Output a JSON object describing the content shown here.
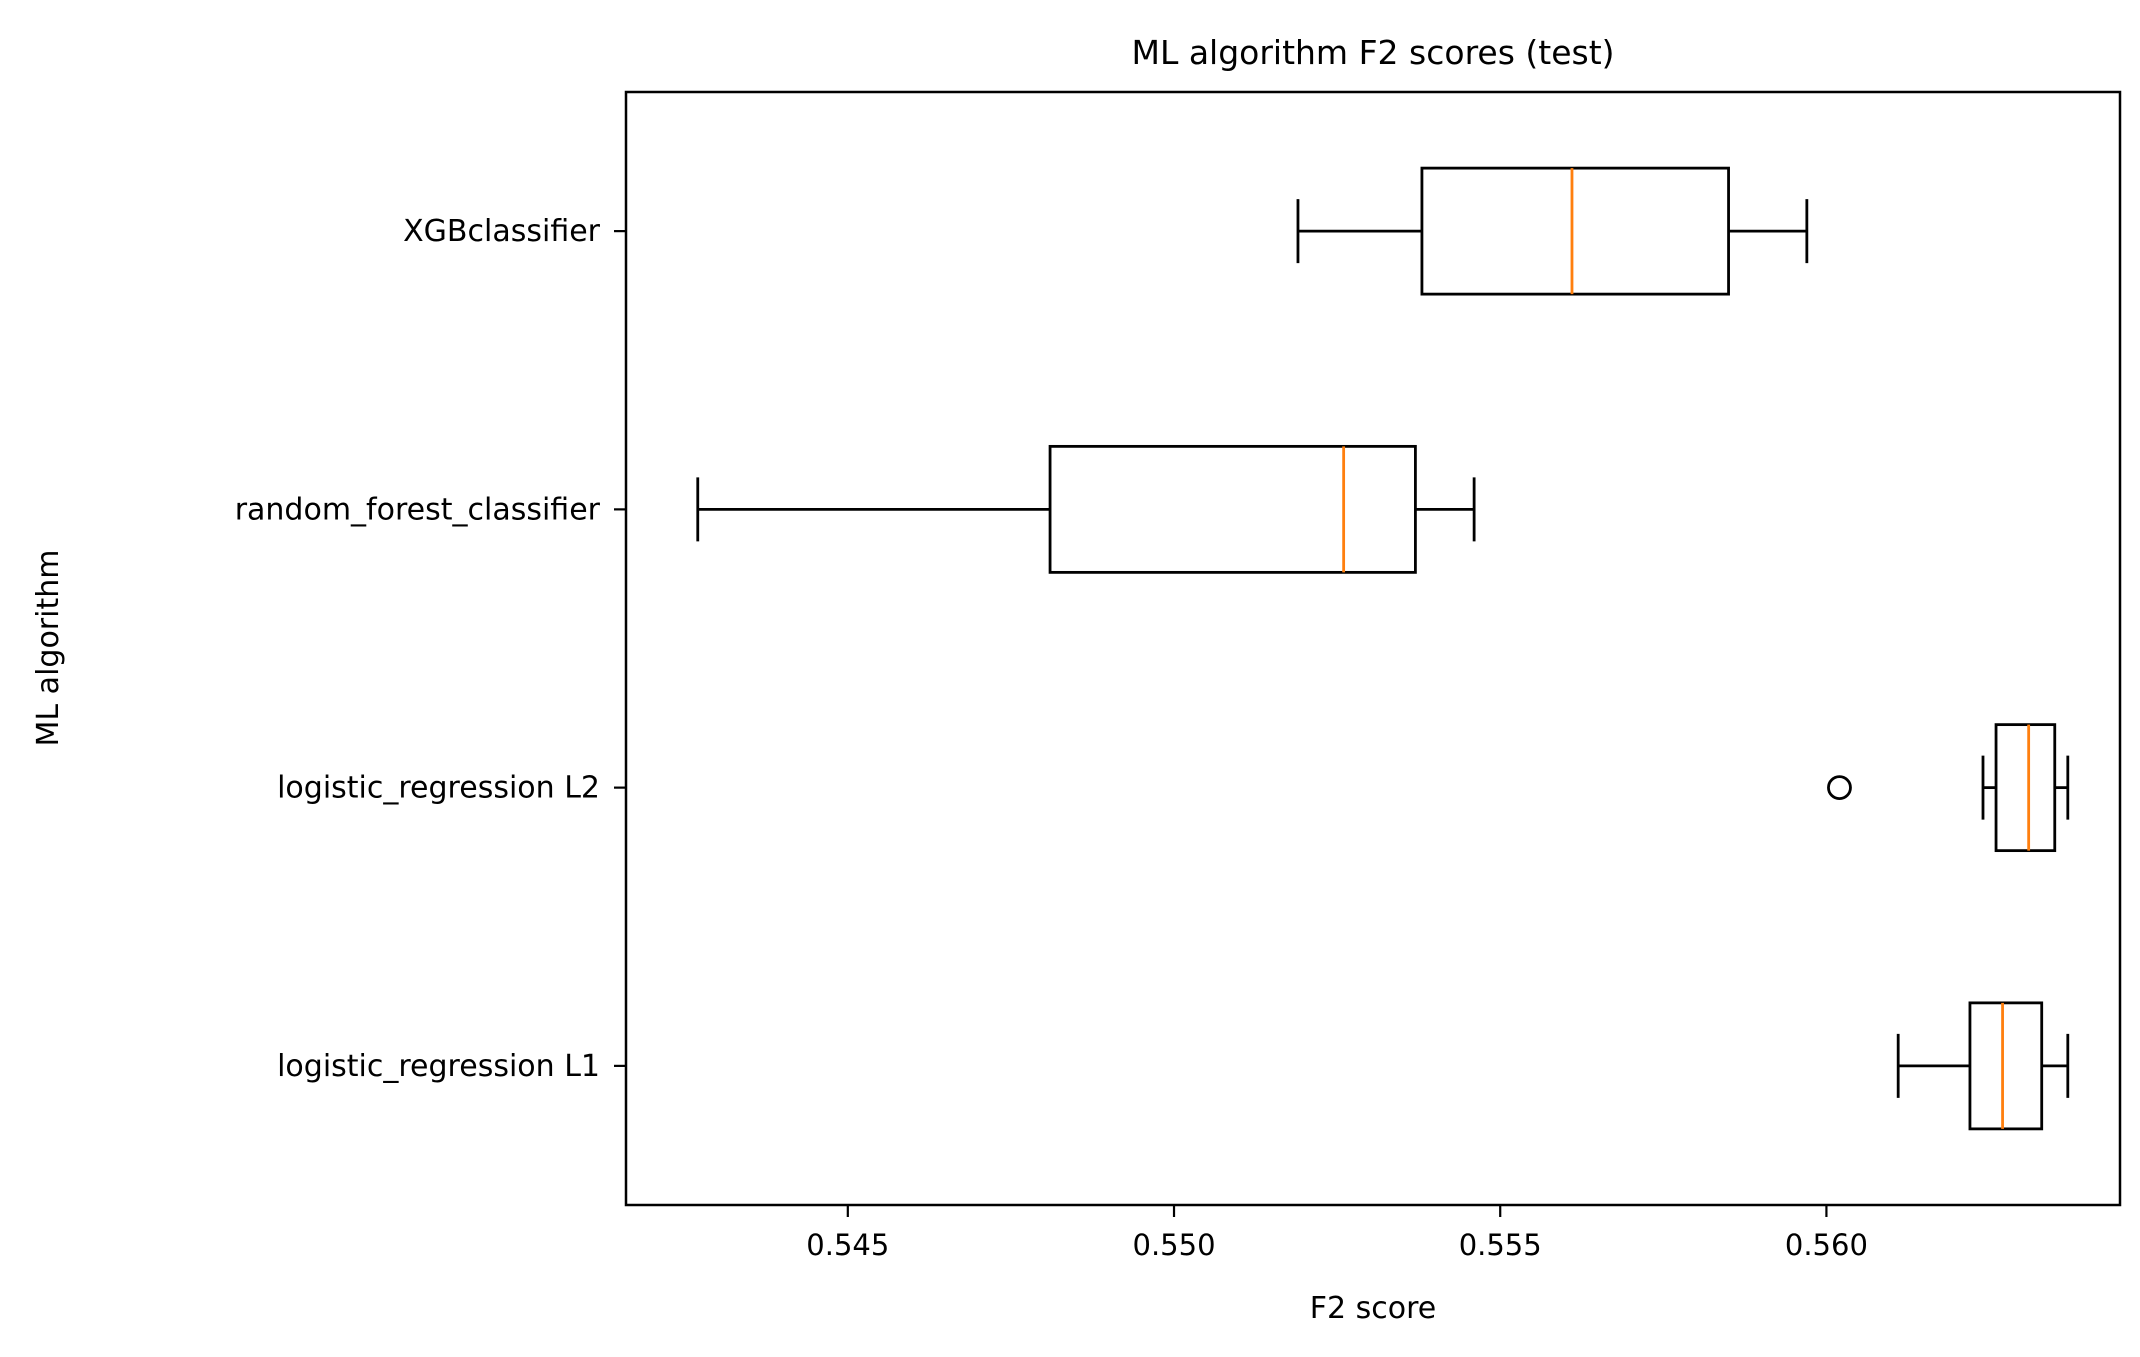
{
  "chart_data": {
    "type": "boxplot",
    "orientation": "horizontal",
    "title": "ML algorithm F2 scores (test)",
    "xlabel": "F2 score",
    "ylabel": "ML algorithm",
    "xlim": [
      0.5416,
      0.5645
    ],
    "xticks": [
      0.545,
      0.55,
      0.555,
      0.56
    ],
    "xtick_labels": [
      "0.545",
      "0.550",
      "0.555",
      "0.560"
    ],
    "grid": false,
    "categories": [
      "logistic_regression L1",
      "logistic_regression L2",
      "random_forest_classifier",
      "XGBclassifier"
    ],
    "boxes": [
      {
        "label": "logistic_regression L1",
        "whisker_low": 0.5611,
        "q1": 0.5622,
        "median": 0.5627,
        "q3": 0.5633,
        "whisker_high": 0.5637,
        "outliers": []
      },
      {
        "label": "logistic_regression L2",
        "whisker_low": 0.5624,
        "q1": 0.5626,
        "median": 0.5631,
        "q3": 0.5635,
        "whisker_high": 0.5637,
        "outliers": [
          0.5602
        ]
      },
      {
        "label": "random_forest_classifier",
        "whisker_low": 0.5427,
        "q1": 0.5481,
        "median": 0.5526,
        "q3": 0.5537,
        "whisker_high": 0.5546,
        "outliers": []
      },
      {
        "label": "XGBclassifier",
        "whisker_low": 0.5519,
        "q1": 0.5538,
        "median": 0.5561,
        "q3": 0.5585,
        "whisker_high": 0.5597,
        "outliers": []
      }
    ],
    "colors": {
      "box": "#000000",
      "median": "#ff7f0e",
      "outlier": "#000000"
    }
  }
}
